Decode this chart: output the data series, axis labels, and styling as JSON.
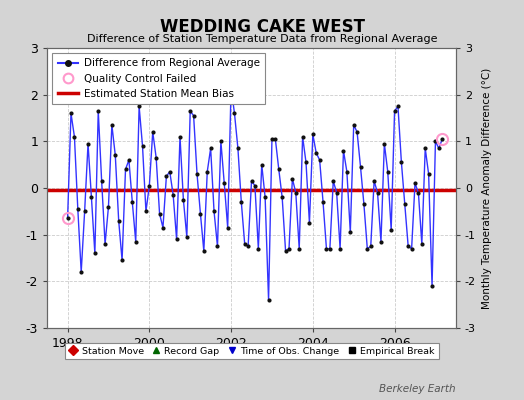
{
  "title": "WEDDING CAKE WEST",
  "subtitle": "Difference of Station Temperature Data from Regional Average",
  "ylabel_right": "Monthly Temperature Anomaly Difference (°C)",
  "xlim": [
    1997.5,
    2007.5
  ],
  "ylim": [
    -3,
    3
  ],
  "xticks": [
    1998,
    2000,
    2002,
    2004,
    2006
  ],
  "yticks": [
    -3,
    -2,
    -1,
    0,
    1,
    2,
    3
  ],
  "bias_value": -0.05,
  "fig_background": "#d4d4d4",
  "plot_background": "#ffffff",
  "line_color": "#3333ff",
  "bias_color": "#cc0000",
  "qc_color": "#ff99cc",
  "watermark": "Berkeley Earth",
  "time_series": [
    1998.0,
    1998.083,
    1998.167,
    1998.25,
    1998.333,
    1998.417,
    1998.5,
    1998.583,
    1998.667,
    1998.75,
    1998.833,
    1998.917,
    1999.0,
    1999.083,
    1999.167,
    1999.25,
    1999.333,
    1999.417,
    1999.5,
    1999.583,
    1999.667,
    1999.75,
    1999.833,
    1999.917,
    2000.0,
    2000.083,
    2000.167,
    2000.25,
    2000.333,
    2000.417,
    2000.5,
    2000.583,
    2000.667,
    2000.75,
    2000.833,
    2000.917,
    2001.0,
    2001.083,
    2001.167,
    2001.25,
    2001.333,
    2001.417,
    2001.5,
    2001.583,
    2001.667,
    2001.75,
    2001.833,
    2001.917,
    2002.0,
    2002.083,
    2002.167,
    2002.25,
    2002.333,
    2002.417,
    2002.5,
    2002.583,
    2002.667,
    2002.75,
    2002.833,
    2002.917,
    2003.0,
    2003.083,
    2003.167,
    2003.25,
    2003.333,
    2003.417,
    2003.5,
    2003.583,
    2003.667,
    2003.75,
    2003.833,
    2003.917,
    2004.0,
    2004.083,
    2004.167,
    2004.25,
    2004.333,
    2004.417,
    2004.5,
    2004.583,
    2004.667,
    2004.75,
    2004.833,
    2004.917,
    2005.0,
    2005.083,
    2005.167,
    2005.25,
    2005.333,
    2005.417,
    2005.5,
    2005.583,
    2005.667,
    2005.75,
    2005.833,
    2005.917,
    2006.0,
    2006.083,
    2006.167,
    2006.25,
    2006.333,
    2006.417,
    2006.5,
    2006.583,
    2006.667,
    2006.75,
    2006.833,
    2006.917,
    2007.0,
    2007.083,
    2007.167
  ],
  "values": [
    -0.65,
    1.6,
    1.1,
    -0.45,
    -1.8,
    -0.5,
    0.95,
    -0.2,
    -1.4,
    1.65,
    0.15,
    -1.2,
    -0.4,
    1.35,
    0.7,
    -0.7,
    -1.55,
    0.4,
    0.6,
    -0.3,
    -1.15,
    1.75,
    0.9,
    -0.5,
    0.05,
    1.2,
    0.65,
    -0.55,
    -0.85,
    0.25,
    0.35,
    -0.15,
    -1.1,
    1.1,
    -0.25,
    -1.05,
    1.65,
    1.55,
    0.3,
    -0.55,
    -1.35,
    0.35,
    0.85,
    -0.5,
    -1.25,
    1.0,
    0.1,
    -0.85,
    2.15,
    1.6,
    0.85,
    -0.3,
    -1.2,
    -1.25,
    0.15,
    0.05,
    -1.3,
    0.5,
    -0.2,
    -2.4,
    1.05,
    1.05,
    0.4,
    -0.2,
    -1.35,
    -1.3,
    0.2,
    -0.1,
    -1.3,
    1.1,
    0.55,
    -0.75,
    1.15,
    0.75,
    0.6,
    -0.3,
    -1.3,
    -1.3,
    0.15,
    -0.1,
    -1.3,
    0.8,
    0.35,
    -0.95,
    1.35,
    1.2,
    0.45,
    -0.35,
    -1.3,
    -1.25,
    0.15,
    -0.1,
    -1.15,
    0.95,
    0.35,
    -0.9,
    1.65,
    1.75,
    0.55,
    -0.35,
    -1.25,
    -1.3,
    0.1,
    -0.1,
    -1.2,
    0.85,
    0.3,
    -2.1,
    1.0,
    0.85,
    1.05
  ],
  "qc_failed_points": [
    [
      1998.0,
      -0.65
    ],
    [
      2007.167,
      1.05
    ]
  ],
  "legend1_items": [
    {
      "label": "Difference from Regional Average",
      "color": "#3333ff",
      "marker": "o",
      "linestyle": "-"
    },
    {
      "label": "Quality Control Failed",
      "color": "#ff99cc",
      "marker": "o",
      "linestyle": "none"
    },
    {
      "label": "Estimated Station Mean Bias",
      "color": "#cc0000",
      "marker": "none",
      "linestyle": "-"
    }
  ],
  "legend2_items": [
    {
      "label": "Station Move",
      "color": "#cc0000",
      "marker": "D",
      "linestyle": "none"
    },
    {
      "label": "Record Gap",
      "color": "#006600",
      "marker": "^",
      "linestyle": "none"
    },
    {
      "label": "Time of Obs. Change",
      "color": "#0000cc",
      "marker": "v",
      "linestyle": "none"
    },
    {
      "label": "Empirical Break",
      "color": "#000000",
      "marker": "s",
      "linestyle": "none"
    }
  ]
}
